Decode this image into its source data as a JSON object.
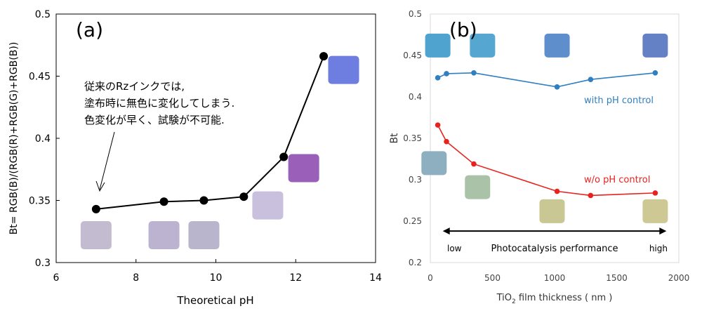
{
  "chart_data": [
    {
      "type": "scatter",
      "panel_label": "(a)",
      "xlabel": "Theoretical pH",
      "ylabel": "Bt= RGB(B)/(RGB(R)+RGB(G)+RGB(B))",
      "xlim": [
        6,
        14
      ],
      "ylim": [
        0.3,
        0.5
      ],
      "xticks": [
        "6",
        "8",
        "10",
        "12",
        "14"
      ],
      "yticks": [
        "0.3",
        "0.35",
        "0.4",
        "0.45",
        "0.5"
      ],
      "series": [
        {
          "points": [
            {
              "x": 7.0,
              "y": 0.343
            },
            {
              "x": 8.7,
              "y": 0.349
            },
            {
              "x": 9.7,
              "y": 0.35
            },
            {
              "x": 10.7,
              "y": 0.353
            },
            {
              "x": 11.7,
              "y": 0.385
            },
            {
              "x": 12.7,
              "y": 0.466
            }
          ],
          "color": "#000000"
        }
      ],
      "annotation_lines": [
        "従来のRzインクでは,",
        "塗布時に無色に変化してしまう.",
        "色変化が早く、試験が不可能."
      ],
      "swatches": [
        {
          "color": "#c3bcd0",
          "x": 7.0,
          "y": 0.322
        },
        {
          "color": "#bcb3d0",
          "x": 8.7,
          "y": 0.322
        },
        {
          "color": "#b9b5cc",
          "x": 9.7,
          "y": 0.322
        },
        {
          "color": "#c8c0dc",
          "x": 11.3,
          "y": 0.346
        },
        {
          "color": "#9a5fb8",
          "x": 12.2,
          "y": 0.376
        },
        {
          "color": "#6e7ee0",
          "x": 13.2,
          "y": 0.455
        }
      ],
      "grid": false
    },
    {
      "type": "line",
      "panel_label": "(b)",
      "xlabel_main": "TiO",
      "xlabel_sub": "2",
      "xlabel_rest": " film thickness ( nm )",
      "ylabel": "Bt",
      "xlim": [
        0,
        2000
      ],
      "ylim": [
        0.2,
        0.5
      ],
      "xticks": [
        "0",
        "500",
        "1000",
        "1500",
        "2000"
      ],
      "yticks": [
        "0.2",
        "0.25",
        "0.3",
        "0.35",
        "0.4",
        "0.45",
        "0.5"
      ],
      "series": [
        {
          "name": "with pH control",
          "color": "#2f7fc1",
          "x": [
            60,
            130,
            350,
            1020,
            1290,
            1810
          ],
          "y": [
            0.423,
            0.428,
            0.429,
            0.412,
            0.421,
            0.429
          ]
        },
        {
          "name": "w/o pH control",
          "color": "#e8231f",
          "x": [
            60,
            130,
            350,
            1020,
            1290,
            1810
          ],
          "y": [
            0.366,
            0.346,
            0.319,
            0.286,
            0.281,
            0.284
          ]
        }
      ],
      "swatches": [
        {
          "color": "#4fa3cf",
          "x": 60,
          "y": 0.462
        },
        {
          "color": "#55a7d2",
          "x": 420,
          "y": 0.462
        },
        {
          "color": "#5e8fcc",
          "x": 1020,
          "y": 0.462
        },
        {
          "color": "#6581c6",
          "x": 1810,
          "y": 0.462
        },
        {
          "color": "#8eafbf",
          "x": 30,
          "y": 0.32
        },
        {
          "color": "#a9c2a8",
          "x": 380,
          "y": 0.291
        },
        {
          "color": "#c9c793",
          "x": 980,
          "y": 0.262
        },
        {
          "color": "#cdc894",
          "x": 1810,
          "y": 0.262
        }
      ],
      "arrow": {
        "from": 100,
        "to": 1900,
        "y": 0.238,
        "label_left": "low",
        "label_center": "Photocatalysis performance",
        "label_right": "high"
      },
      "grid": false
    }
  ]
}
